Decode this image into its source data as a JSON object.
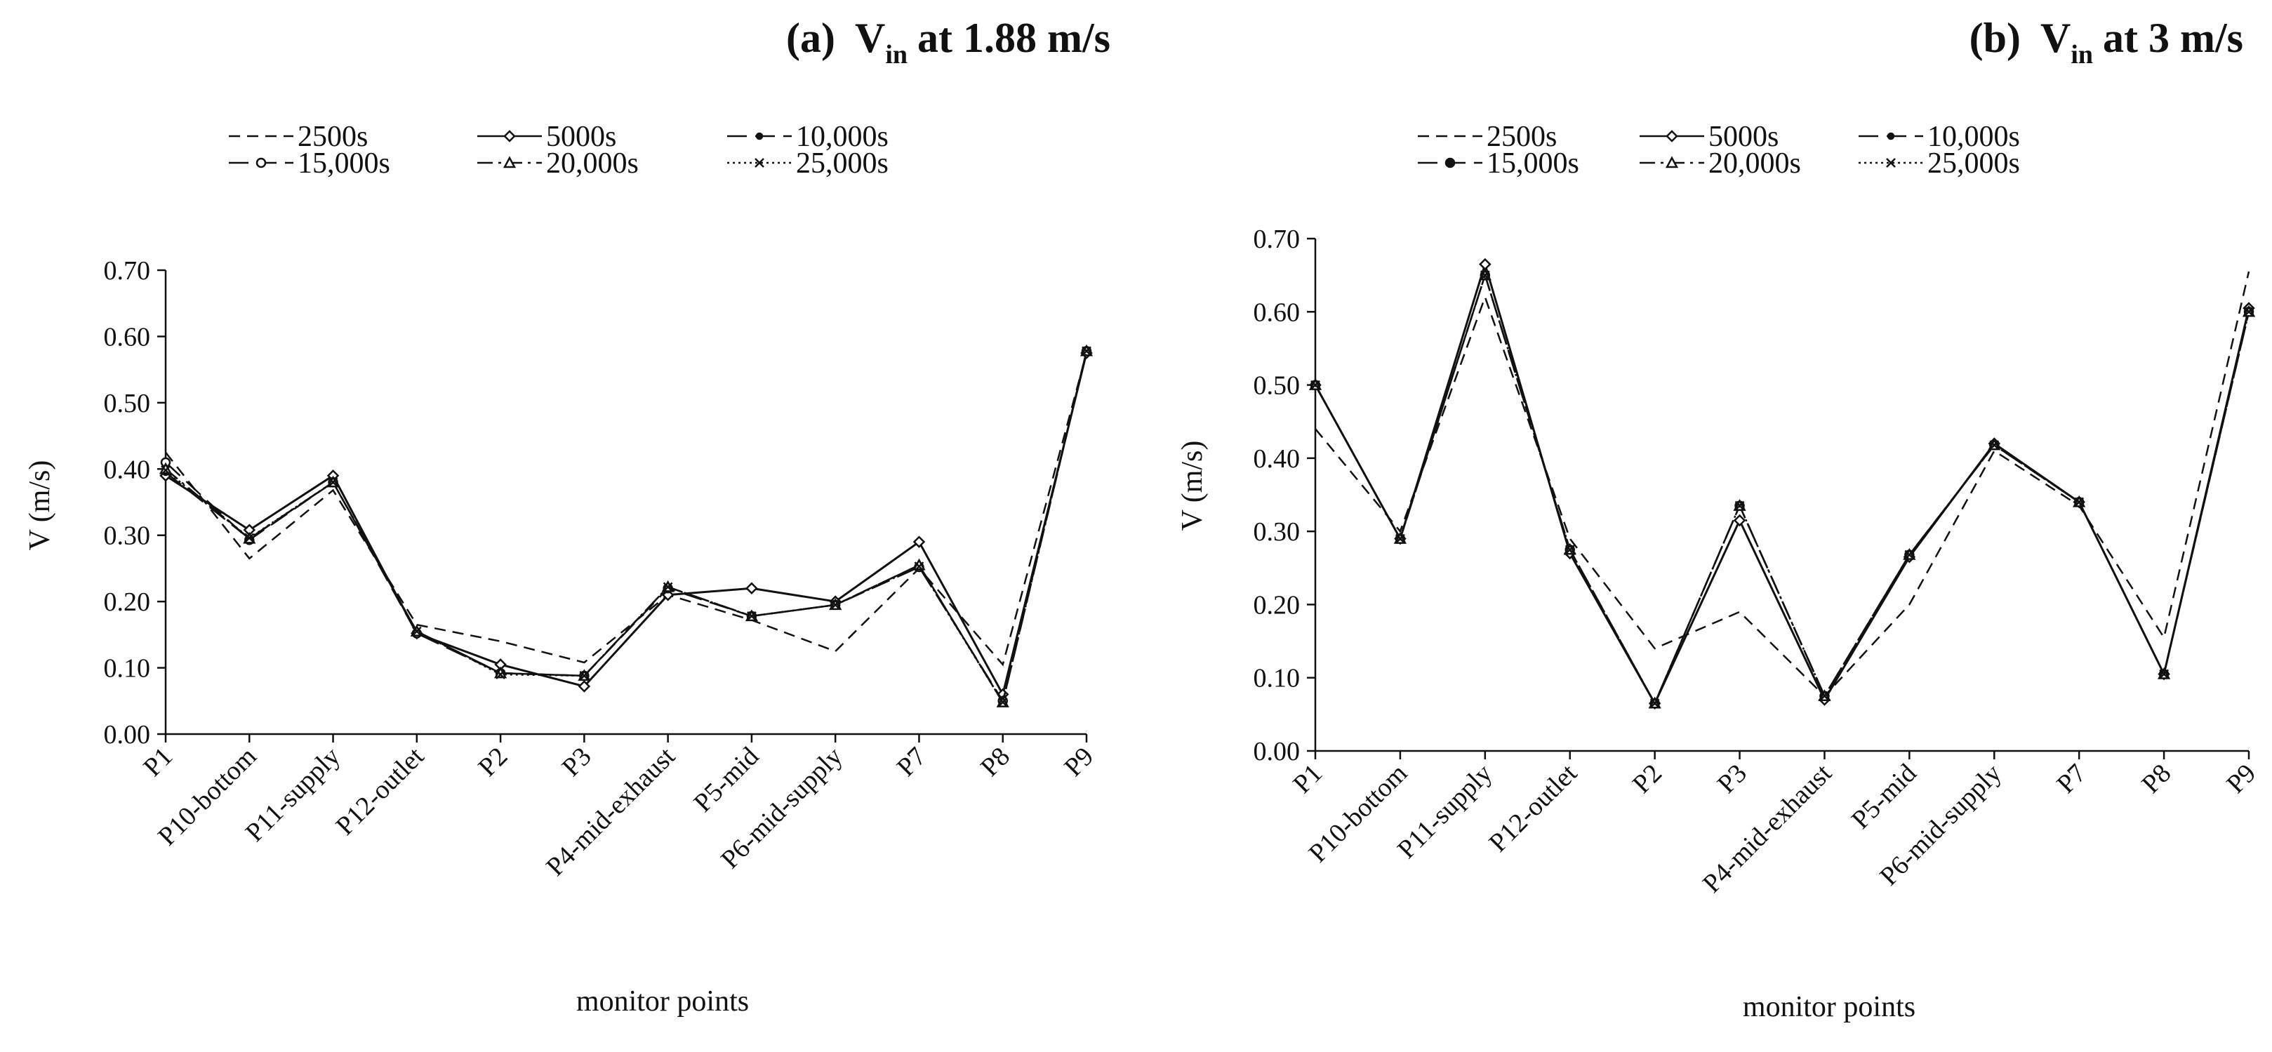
{
  "chart_data": [
    {
      "type": "line",
      "panel": "(a)",
      "title": "(a)  V_in at 1.88 m/s",
      "title_parts": {
        "prefix": "(a)",
        "symbol": "V",
        "subscript": "in",
        "suffix": "at 1.88 m/s"
      },
      "xlabel": "monitor points",
      "ylabel": "V (m/s)",
      "ylim": [
        0,
        0.7
      ],
      "yticks": [
        "0.00",
        "0.10",
        "0.20",
        "0.30",
        "0.40",
        "0.50",
        "0.60",
        "0.70"
      ],
      "categories": [
        "P1",
        "P10-bottom",
        "P11-supply",
        "P12-outlet",
        "P2",
        "P3",
        "P4-mid-exhaust",
        "P5-mid",
        "P6-mid-supply",
        "P7",
        "P8",
        "P9"
      ],
      "legend_position": "top",
      "series": [
        {
          "name": "2500s",
          "style": "dash",
          "marker": "none",
          "values": [
            0.425,
            0.265,
            0.368,
            0.165,
            0.14,
            0.108,
            0.21,
            0.172,
            0.125,
            0.25,
            0.105,
            0.575
          ]
        },
        {
          "name": "5000s",
          "style": "solid",
          "marker": "diamond",
          "values": [
            0.39,
            0.308,
            0.39,
            0.152,
            0.105,
            0.072,
            0.21,
            0.22,
            0.2,
            0.29,
            0.06,
            0.575
          ]
        },
        {
          "name": "10,000s",
          "style": "longdash",
          "marker": "dot",
          "values": [
            0.395,
            0.295,
            0.38,
            0.155,
            0.092,
            0.088,
            0.222,
            0.178,
            0.195,
            0.255,
            0.048,
            0.578
          ]
        },
        {
          "name": "15,000s",
          "style": "longdash",
          "marker": "circle",
          "values": [
            0.41,
            0.293,
            0.38,
            0.152,
            0.092,
            0.088,
            0.22,
            0.178,
            0.195,
            0.252,
            0.05,
            0.578
          ]
        },
        {
          "name": "20,000s",
          "style": "dashdot",
          "marker": "triangle",
          "values": [
            0.4,
            0.295,
            0.38,
            0.155,
            0.092,
            0.088,
            0.222,
            0.178,
            0.195,
            0.255,
            0.048,
            0.578
          ]
        },
        {
          "name": "25,000s",
          "style": "dot",
          "marker": "x",
          "values": [
            0.398,
            0.296,
            0.38,
            0.155,
            0.09,
            0.088,
            0.222,
            0.178,
            0.195,
            0.253,
            0.048,
            0.578
          ]
        }
      ]
    },
    {
      "type": "line",
      "panel": "(b)",
      "title": "(b)  V_in at 3 m/s",
      "title_parts": {
        "prefix": "(b)",
        "symbol": "V",
        "subscript": "in",
        "suffix": "at 3 m/s"
      },
      "xlabel": "monitor points",
      "ylabel": "V (m/s)",
      "ylim": [
        0,
        0.7
      ],
      "yticks": [
        "0.00",
        "0.10",
        "0.20",
        "0.30",
        "0.40",
        "0.50",
        "0.60",
        "0.70"
      ],
      "categories": [
        "P1",
        "P10-bottom",
        "P11-supply",
        "P12-outlet",
        "P2",
        "P3",
        "P4-mid-exhaust",
        "P5-mid",
        "P6-mid-supply",
        "P7",
        "P8",
        "P9"
      ],
      "legend_position": "top",
      "series": [
        {
          "name": "2500s",
          "style": "dash",
          "marker": "none",
          "values": [
            0.44,
            0.3,
            0.62,
            0.29,
            0.14,
            0.19,
            0.075,
            0.2,
            0.41,
            0.335,
            0.155,
            0.655
          ]
        },
        {
          "name": "5000s",
          "style": "solid",
          "marker": "diamond",
          "values": [
            0.5,
            0.29,
            0.665,
            0.27,
            0.065,
            0.315,
            0.07,
            0.265,
            0.42,
            0.34,
            0.105,
            0.605
          ]
        },
        {
          "name": "10,000s",
          "style": "longdash",
          "marker": "dot",
          "values": [
            0.5,
            0.29,
            0.65,
            0.275,
            0.065,
            0.335,
            0.075,
            0.268,
            0.418,
            0.34,
            0.105,
            0.6
          ]
        },
        {
          "name": "15,000s",
          "style": "longdash",
          "marker": "bigdot",
          "values": [
            0.5,
            0.29,
            0.65,
            0.275,
            0.065,
            0.335,
            0.075,
            0.268,
            0.418,
            0.34,
            0.105,
            0.6
          ]
        },
        {
          "name": "20,000s",
          "style": "dashdot",
          "marker": "triangle",
          "values": [
            0.5,
            0.29,
            0.65,
            0.275,
            0.065,
            0.335,
            0.075,
            0.268,
            0.418,
            0.34,
            0.105,
            0.6
          ]
        },
        {
          "name": "25,000s",
          "style": "dot",
          "marker": "x",
          "values": [
            0.5,
            0.29,
            0.65,
            0.275,
            0.065,
            0.335,
            0.075,
            0.268,
            0.418,
            0.34,
            0.105,
            0.6
          ]
        }
      ]
    }
  ]
}
